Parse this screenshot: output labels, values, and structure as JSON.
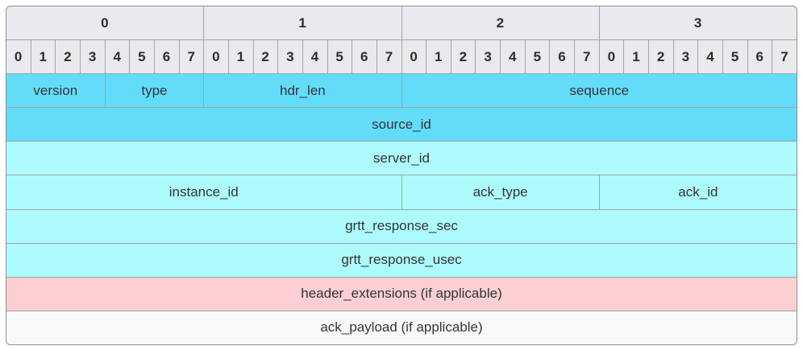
{
  "diagram": {
    "kind": "packet-header-structure",
    "colors": {
      "header": "#e9eaed",
      "dark_cyan": "#63dcfa",
      "light_cyan": "#aefbfd",
      "pink": "#fccfd2",
      "white": "#f8f9fb",
      "grid_line": "#a2a4a6",
      "outer_border": "#8e9093",
      "text": "#333537"
    },
    "byte_header": [
      "0",
      "1",
      "2",
      "3"
    ],
    "bit_header": [
      "0",
      "1",
      "2",
      "3",
      "4",
      "5",
      "6",
      "7",
      "0",
      "1",
      "2",
      "3",
      "4",
      "5",
      "6",
      "7",
      "0",
      "1",
      "2",
      "3",
      "4",
      "5",
      "6",
      "7",
      "0",
      "1",
      "2",
      "3",
      "4",
      "5",
      "6",
      "7"
    ],
    "rows": [
      {
        "name": "word-0",
        "cells": [
          {
            "label": "version",
            "span": 4,
            "bg": "dark_cyan"
          },
          {
            "label": "type",
            "span": 4,
            "bg": "dark_cyan"
          },
          {
            "label": "hdr_len",
            "span": 8,
            "bg": "dark_cyan"
          },
          {
            "label": "sequence",
            "span": 16,
            "bg": "dark_cyan"
          }
        ]
      },
      {
        "name": "word-1",
        "cells": [
          {
            "label": "source_id",
            "span": 32,
            "bg": "dark_cyan"
          }
        ]
      },
      {
        "name": "word-2",
        "cells": [
          {
            "label": "server_id",
            "span": 32,
            "bg": "light_cyan"
          }
        ]
      },
      {
        "name": "word-3",
        "cells": [
          {
            "label": "instance_id",
            "span": 16,
            "bg": "light_cyan"
          },
          {
            "label": "ack_type",
            "span": 8,
            "bg": "light_cyan"
          },
          {
            "label": "ack_id",
            "span": 8,
            "bg": "light_cyan"
          }
        ]
      },
      {
        "name": "word-4",
        "cells": [
          {
            "label": "grtt_response_sec",
            "span": 32,
            "bg": "light_cyan"
          }
        ]
      },
      {
        "name": "word-5",
        "cells": [
          {
            "label": "grtt_response_usec",
            "span": 32,
            "bg": "light_cyan"
          }
        ]
      },
      {
        "name": "word-6",
        "cells": [
          {
            "label": "header_extensions (if applicable)",
            "span": 32,
            "bg": "pink"
          }
        ]
      },
      {
        "name": "word-7",
        "cells": [
          {
            "label": "ack_payload (if applicable)",
            "span": 32,
            "bg": "white"
          }
        ]
      }
    ]
  }
}
